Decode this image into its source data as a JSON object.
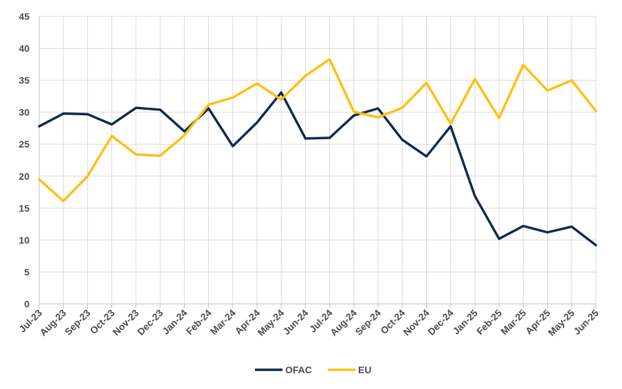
{
  "chart_data": {
    "type": "line",
    "categories": [
      "Jul-23",
      "Aug-23",
      "Sep-23",
      "Oct-23",
      "Nov-23",
      "Dec-23",
      "Jan-24",
      "Feb-24",
      "Mar-24",
      "Apr-24",
      "May-24",
      "Jun-24",
      "Jul-24",
      "Aug-24",
      "Sep-24",
      "Oct-24",
      "Nov-24",
      "Dec-24",
      "Jan-25",
      "Feb-25",
      "Mar-25",
      "Apr-25",
      "May-25",
      "Jun-25"
    ],
    "series": [
      {
        "name": "OFAC",
        "color": "#0f2a4a",
        "values": [
          27.8,
          29.8,
          29.7,
          28.1,
          30.7,
          30.4,
          27.0,
          30.6,
          24.7,
          28.4,
          33.1,
          25.9,
          26.0,
          29.5,
          30.6,
          25.7,
          23.1,
          27.8,
          16.9,
          10.2,
          12.2,
          11.2,
          12.1,
          9.2
        ]
      },
      {
        "name": "EU",
        "color": "#fdc012",
        "values": [
          19.5,
          16.1,
          20.0,
          26.3,
          23.4,
          23.2,
          26.4,
          31.2,
          32.3,
          34.5,
          32.0,
          35.7,
          38.3,
          30.1,
          29.2,
          30.7,
          34.6,
          28.2,
          35.2,
          29.1,
          37.4,
          33.4,
          35.0,
          30.2
        ]
      }
    ],
    "yticks": [
      "0",
      "5",
      "10",
      "15",
      "20",
      "25",
      "30",
      "35",
      "40",
      "45"
    ],
    "ylim": [
      0,
      45
    ],
    "grid": true,
    "legend_position": "bottom-center"
  }
}
